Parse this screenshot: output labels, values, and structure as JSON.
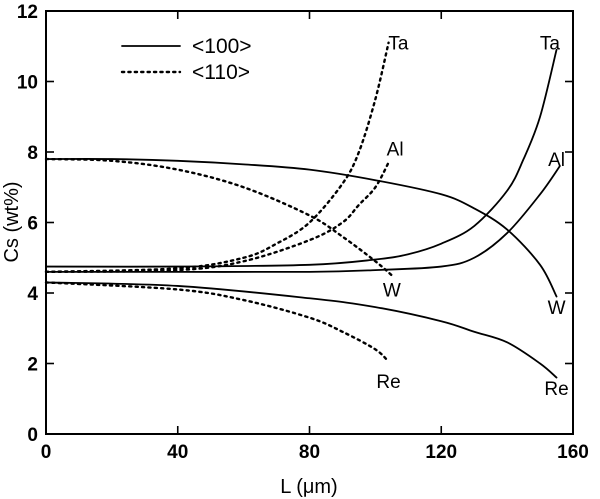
{
  "chart_data": {
    "type": "line",
    "title": "",
    "xlabel": "L (μm)",
    "ylabel": "Cs (wt%)",
    "xlim": [
      0,
      160
    ],
    "ylim": [
      0,
      12
    ],
    "xticks": [
      0,
      40,
      80,
      120,
      160
    ],
    "yticks": [
      0,
      2,
      4,
      6,
      8,
      10,
      12
    ],
    "grid": false,
    "legend_position": "top-left",
    "legend": [
      {
        "label": "<100>",
        "style": "solid"
      },
      {
        "label": "<110>",
        "style": "dotted"
      }
    ],
    "series": [
      {
        "element": "Ta",
        "orientation": "<100>",
        "style": "solid",
        "x": [
          0,
          40,
          80,
          100,
          110,
          120,
          130,
          140,
          145,
          150,
          155
        ],
        "y": [
          4.75,
          4.75,
          4.8,
          4.95,
          5.1,
          5.4,
          5.9,
          6.9,
          7.8,
          9.0,
          10.9
        ]
      },
      {
        "element": "Al",
        "orientation": "<100>",
        "style": "solid",
        "x": [
          0,
          40,
          80,
          100,
          120,
          130,
          140,
          150,
          156
        ],
        "y": [
          4.6,
          4.6,
          4.6,
          4.65,
          4.75,
          5.0,
          5.7,
          6.8,
          7.6
        ]
      },
      {
        "element": "W",
        "orientation": "<100>",
        "style": "solid",
        "x": [
          0,
          20,
          40,
          60,
          80,
          100,
          120,
          130,
          140,
          150,
          155
        ],
        "y": [
          7.8,
          7.8,
          7.75,
          7.65,
          7.5,
          7.2,
          6.8,
          6.4,
          5.8,
          4.8,
          3.9
        ]
      },
      {
        "element": "Re",
        "orientation": "<100>",
        "style": "solid",
        "x": [
          0,
          40,
          80,
          100,
          120,
          130,
          140,
          150,
          155
        ],
        "y": [
          4.3,
          4.2,
          3.85,
          3.6,
          3.2,
          2.9,
          2.6,
          2.0,
          1.6
        ]
      },
      {
        "element": "Ta",
        "orientation": "<110>",
        "style": "dotted",
        "x": [
          0,
          40,
          60,
          70,
          80,
          90,
          95,
          100,
          104
        ],
        "y": [
          4.6,
          4.7,
          5.0,
          5.4,
          6.0,
          7.1,
          8.0,
          9.5,
          11.1
        ]
      },
      {
        "element": "Al",
        "orientation": "<110>",
        "style": "dotted",
        "x": [
          0,
          40,
          60,
          80,
          90,
          95,
          100,
          104
        ],
        "y": [
          4.6,
          4.65,
          4.9,
          5.5,
          6.0,
          6.5,
          7.0,
          7.7
        ]
      },
      {
        "element": "W",
        "orientation": "<110>",
        "style": "dotted",
        "x": [
          0,
          20,
          40,
          60,
          80,
          90,
          100,
          105
        ],
        "y": [
          7.8,
          7.75,
          7.5,
          7.0,
          6.2,
          5.6,
          4.9,
          4.5
        ]
      },
      {
        "element": "Re",
        "orientation": "<110>",
        "style": "dotted",
        "x": [
          0,
          40,
          60,
          80,
          90,
          100,
          104
        ],
        "y": [
          4.3,
          4.1,
          3.8,
          3.3,
          2.9,
          2.4,
          2.05
        ]
      }
    ],
    "annotations": [
      {
        "text": "Ta",
        "x": 107,
        "y": 11.1
      },
      {
        "text": "Al",
        "x": 106,
        "y": 8.1
      },
      {
        "text": "W",
        "x": 105,
        "y": 4.1
      },
      {
        "text": "Re",
        "x": 104,
        "y": 1.5
      },
      {
        "text": "Ta",
        "x": 153,
        "y": 11.1
      },
      {
        "text": "Al",
        "x": 155,
        "y": 7.8
      },
      {
        "text": "W",
        "x": 155,
        "y": 3.6
      },
      {
        "text": "Re",
        "x": 155,
        "y": 1.3
      }
    ]
  }
}
